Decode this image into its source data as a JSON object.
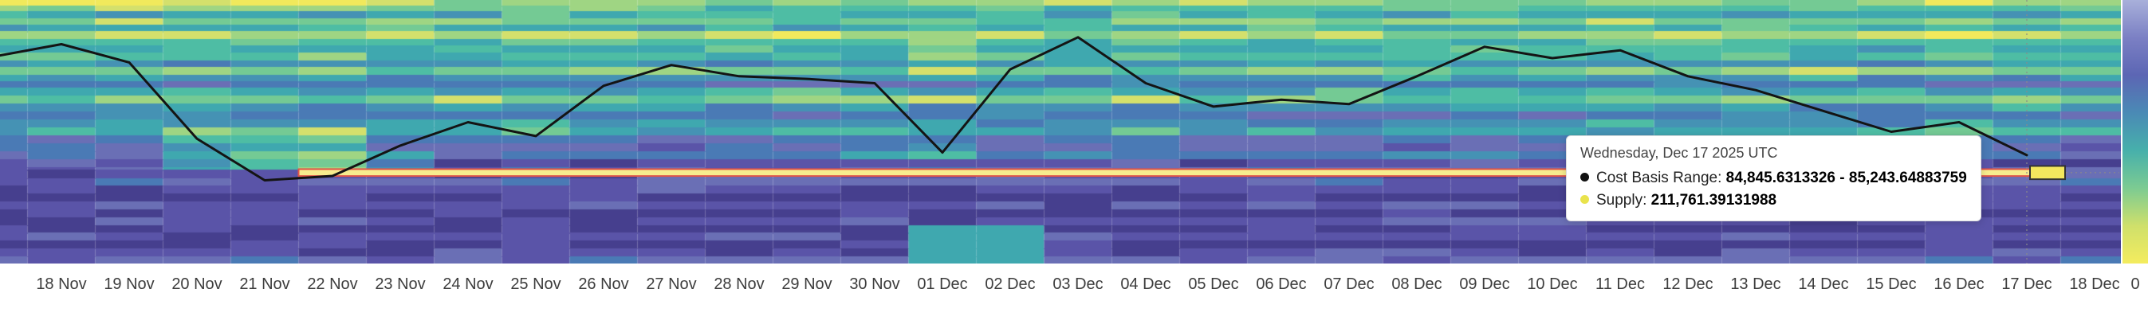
{
  "tooltip": {
    "title": "Wednesday, Dec 17 2025 UTC",
    "row1_label": "Cost Basis Range: ",
    "row1_value": "84,845.6313326 - 85,243.64883759",
    "row2_label": "Supply: ",
    "row2_value": "211,761.39131988",
    "row1_marker_color": "#111111",
    "row2_marker_color": "#e9e34c"
  },
  "chart_data": {
    "type": "heatmap",
    "title": "",
    "xlabel": "",
    "ylabel": "",
    "x_tick_labels": [
      "18 Nov",
      "19 Nov",
      "20 Nov",
      "21 Nov",
      "22 Nov",
      "23 Nov",
      "24 Nov",
      "25 Nov",
      "26 Nov",
      "27 Nov",
      "28 Nov",
      "29 Nov",
      "30 Nov",
      "01 Dec",
      "02 Dec",
      "03 Dec",
      "04 Dec",
      "05 Dec",
      "06 Dec",
      "07 Dec",
      "08 Dec",
      "09 Dec",
      "10 Dec",
      "11 Dec",
      "12 Dec",
      "13 Dec",
      "14 Dec",
      "15 Dec",
      "16 Dec",
      "17 Dec",
      "18 Dec"
    ],
    "y_axis": {
      "visible": false,
      "ylim_estimate": [
        79800,
        95000
      ]
    },
    "price_line": {
      "name": "Price",
      "color": "#141414",
      "left_edge_value": 91800,
      "values": [
        92450,
        91400,
        87000,
        84600,
        84850,
        86600,
        87950,
        87150,
        90050,
        91250,
        90600,
        90450,
        90200,
        86200,
        91000,
        92850,
        90200,
        88850,
        89250,
        89000,
        90600,
        92300,
        91650,
        92100,
        90600,
        89800,
        88600,
        87400,
        87950,
        86050
      ]
    },
    "highlight": {
      "hover_label": "17 Dec",
      "band_start_label": "22 Nov",
      "range_low": 84845.6313326,
      "range_high": 85243.64883759,
      "supply": 211761.39131988,
      "band_fill": "#f7ec8e",
      "band_border": "#e0544a",
      "cell_fill": "#f3e75e",
      "guide_color": "#8a8a8a"
    },
    "colorbar": {
      "tick_label": "0",
      "gradient_top_to_bottom": [
        "#a8b0da",
        "#7b80c4",
        "#5c66b4",
        "#4a8ab5",
        "#47b0ab",
        "#7ccb92",
        "#cfe06b",
        "#f4ec5e"
      ]
    },
    "heatmap": {
      "seed": 42,
      "palette": [
        "#463f8e",
        "#5a54a8",
        "#6a6fb5",
        "#4a7ab5",
        "#4592b4",
        "#3fa8af",
        "#4ebda4",
        "#74ca94",
        "#9fd583",
        "#d4e06c",
        "#f1e95c"
      ],
      "rows": [
        [
          0.022,
          8
        ],
        [
          0.023,
          6
        ],
        [
          0.025,
          5
        ],
        [
          0.025,
          7
        ],
        [
          0.025,
          5
        ],
        [
          0.03,
          8
        ],
        [
          0.025,
          6
        ],
        [
          0.025,
          5
        ],
        [
          0.03,
          6
        ],
        [
          0.025,
          4
        ],
        [
          0.03,
          7
        ],
        [
          0.025,
          4
        ],
        [
          0.025,
          3
        ],
        [
          0.03,
          5
        ],
        [
          0.03,
          7
        ],
        [
          0.03,
          4
        ],
        [
          0.03,
          3
        ],
        [
          0.03,
          4
        ],
        [
          0.03,
          5
        ],
        [
          0.03,
          3
        ],
        [
          0.03,
          2
        ],
        [
          0.03,
          3
        ],
        [
          0.03,
          1
        ],
        [
          0.01,
          2
        ],
        [
          0.033,
          1
        ],
        [
          0.027,
          2
        ],
        [
          0.03,
          1
        ],
        [
          0.03,
          0
        ],
        [
          0.03,
          1
        ],
        [
          0.03,
          0
        ],
        [
          0.03,
          1
        ],
        [
          0.03,
          0
        ],
        [
          0.03,
          1
        ],
        [
          0.03,
          0
        ],
        [
          0.03,
          1
        ],
        [
          0.025,
          2
        ]
      ],
      "features": [
        {
          "c0": 0,
          "c1": 5,
          "f0": 0.0,
          "f1": 0.05,
          "boost": 2
        },
        {
          "c0": 0,
          "c1": 1,
          "f0": 0.0,
          "f1": 0.022,
          "set": 10
        },
        {
          "c0": 2,
          "c1": 4,
          "f0": 0.48,
          "f1": 0.645,
          "boost": 3
        },
        {
          "c0": 3,
          "c1": 5,
          "f0": 0.58,
          "f1": 0.645,
          "boost": 2
        },
        {
          "c0": 12,
          "c1": 13,
          "f0": 0.55,
          "f1": 0.61,
          "boost": 2
        },
        {
          "c0": 13,
          "c1": 14,
          "f0": 0.86,
          "f1": 1.0,
          "set": 5
        },
        {
          "c0": 28,
          "c1": 28,
          "f0": 0.0,
          "f1": 0.022,
          "set": 10
        }
      ]
    }
  }
}
